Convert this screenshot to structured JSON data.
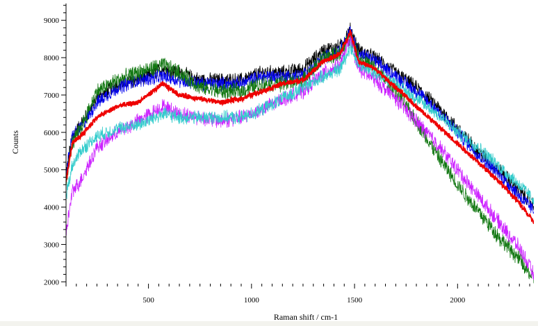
{
  "chart_data": {
    "type": "line",
    "title": "",
    "xlabel": "Raman shift / cm-1",
    "ylabel": "Counts",
    "xlim": [
      100,
      2370
    ],
    "ylim": [
      1950,
      9450
    ],
    "x_ticks": [
      500,
      1000,
      1500,
      2000
    ],
    "y_ticks": [
      2000,
      3000,
      4000,
      5000,
      6000,
      7000,
      8000,
      9000
    ],
    "grid": false,
    "legend": "none",
    "x": [
      100,
      130,
      170,
      250,
      350,
      450,
      570,
      650,
      750,
      850,
      950,
      1050,
      1150,
      1250,
      1350,
      1430,
      1480,
      1520,
      1600,
      1700,
      1800,
      1900,
      2000,
      2100,
      2200,
      2300,
      2370
    ],
    "series": [
      {
        "color": "#000000",
        "noise": 170,
        "values": [
          4900,
          5900,
          6200,
          6900,
          7300,
          7400,
          7700,
          7600,
          7400,
          7400,
          7400,
          7600,
          7600,
          7700,
          8200,
          8300,
          8750,
          8200,
          8000,
          7600,
          7200,
          6700,
          6100,
          5500,
          5000,
          4450,
          4050
        ]
      },
      {
        "color": "#0000ee",
        "noise": 170,
        "values": [
          4900,
          5900,
          6100,
          6800,
          7200,
          7400,
          7500,
          7400,
          7300,
          7300,
          7300,
          7500,
          7500,
          7500,
          8000,
          8200,
          8700,
          8100,
          7900,
          7500,
          7100,
          6600,
          6000,
          5400,
          4900,
          4300,
          3900
        ]
      },
      {
        "color": "#117711",
        "noise": 190,
        "values": [
          4700,
          5700,
          6100,
          7100,
          7400,
          7600,
          7800,
          7600,
          7200,
          7100,
          7100,
          7300,
          7300,
          7400,
          8000,
          8100,
          8600,
          8000,
          7700,
          7100,
          6300,
          5400,
          4600,
          3900,
          3200,
          2600,
          2050
        ]
      },
      {
        "color": "#cc22ff",
        "noise": 180,
        "values": [
          3300,
          4400,
          4700,
          5600,
          6000,
          6300,
          6700,
          6500,
          6400,
          6300,
          6400,
          6600,
          6900,
          7100,
          7600,
          7800,
          8500,
          7700,
          7400,
          6900,
          6300,
          5700,
          5000,
          4300,
          3600,
          2900,
          2200
        ]
      },
      {
        "color": "#33cccc",
        "noise": 160,
        "values": [
          4300,
          5100,
          5500,
          5900,
          6100,
          6200,
          6500,
          6400,
          6400,
          6400,
          6400,
          6600,
          6900,
          7200,
          7500,
          7700,
          8300,
          7800,
          7600,
          7300,
          6900,
          6500,
          6000,
          5600,
          5100,
          4600,
          4200
        ]
      },
      {
        "color": "#ee0000",
        "noise": 60,
        "values": [
          4700,
          5700,
          5900,
          6400,
          6700,
          6800,
          7300,
          7000,
          6900,
          6800,
          6900,
          7100,
          7300,
          7400,
          7900,
          8100,
          8700,
          7900,
          7700,
          7200,
          6700,
          6200,
          5700,
          5200,
          4700,
          4100,
          3600
        ]
      }
    ]
  }
}
